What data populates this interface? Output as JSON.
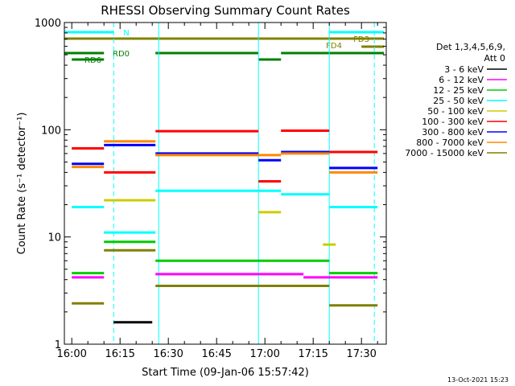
{
  "chart_data": {
    "type": "line",
    "title": "RHESSI Observing Summary Count Rates",
    "xlabel": "Start Time (09-Jan-06 15:57:42)",
    "ylabel": "Count Rate (s⁻¹ detector⁻¹)",
    "y_scale": "log",
    "ylim": [
      1,
      1000
    ],
    "xlim_minutes_after_start": [
      0,
      100
    ],
    "x_tick_labels": [
      "16:00",
      "16:15",
      "16:30",
      "16:45",
      "17:00",
      "17:15",
      "17:30"
    ],
    "x_tick_times": [
      "16:00",
      "16:15",
      "16:30",
      "16:45",
      "17:00",
      "17:15",
      "17:30"
    ],
    "y_tick_labels": [
      "1",
      "10",
      "100",
      "1000"
    ],
    "y_tick_values": [
      1,
      10,
      100,
      1000
    ],
    "legend_header": [
      "Det 1,3,4,5,6,9,",
      "Att 0"
    ],
    "legend_position": "right",
    "series": [
      {
        "name": "3 - 6 keV",
        "color": "#000000",
        "segments": [
          {
            "t0": "16:13",
            "t1": "16:25",
            "y": 1.6
          }
        ]
      },
      {
        "name": "6 - 12 keV",
        "color": "#ff00ff",
        "segments": [
          {
            "t0": "16:00",
            "t1": "16:10",
            "y": 4.2
          },
          {
            "t0": "16:26",
            "t1": "17:12",
            "y": 4.5
          },
          {
            "t0": "17:12",
            "t1": "17:35",
            "y": 4.2
          }
        ]
      },
      {
        "name": "12 - 25 keV",
        "color": "#00cc00",
        "segments": [
          {
            "t0": "16:00",
            "t1": "16:10",
            "y": 4.6
          },
          {
            "t0": "16:10",
            "t1": "16:26",
            "y": 9
          },
          {
            "t0": "16:26",
            "t1": "17:20",
            "y": 6
          },
          {
            "t0": "17:20",
            "t1": "17:35",
            "y": 4.6
          }
        ]
      },
      {
        "name": "25 - 50 keV",
        "color": "#00ffff",
        "segments": [
          {
            "t0": "16:00",
            "t1": "16:10",
            "y": 19
          },
          {
            "t0": "16:10",
            "t1": "16:26",
            "y": 11
          },
          {
            "t0": "16:26",
            "t1": "17:05",
            "y": 27
          },
          {
            "t0": "17:05",
            "t1": "17:20",
            "y": 25
          },
          {
            "t0": "17:20",
            "t1": "17:35",
            "y": 19
          }
        ]
      },
      {
        "name": "50 - 100 keV",
        "color": "#cccc00",
        "segments": [
          {
            "t0": "16:10",
            "t1": "16:26",
            "y": 22
          },
          {
            "t0": "16:58",
            "t1": "17:05",
            "y": 17
          },
          {
            "t0": "17:18",
            "t1": "17:22",
            "y": 8.5
          }
        ]
      },
      {
        "name": "100 - 300 keV",
        "color": "#ff0000",
        "segments": [
          {
            "t0": "16:00",
            "t1": "16:10",
            "y": 67
          },
          {
            "t0": "16:10",
            "t1": "16:26",
            "y": 40
          },
          {
            "t0": "16:26",
            "t1": "16:58",
            "y": 97
          },
          {
            "t0": "16:58",
            "t1": "17:05",
            "y": 33
          },
          {
            "t0": "17:05",
            "t1": "17:20",
            "y": 98
          },
          {
            "t0": "17:20",
            "t1": "17:35",
            "y": 62
          }
        ]
      },
      {
        "name": "300 - 800 keV",
        "color": "#0000ff",
        "segments": [
          {
            "t0": "16:00",
            "t1": "16:10",
            "y": 48
          },
          {
            "t0": "16:10",
            "t1": "16:26",
            "y": 72
          },
          {
            "t0": "16:26",
            "t1": "16:58",
            "y": 60
          },
          {
            "t0": "16:58",
            "t1": "17:05",
            "y": 52
          },
          {
            "t0": "17:05",
            "t1": "17:20",
            "y": 62
          },
          {
            "t0": "17:20",
            "t1": "17:35",
            "y": 44
          }
        ]
      },
      {
        "name": "800 - 7000 keV",
        "color": "#ff8800",
        "segments": [
          {
            "t0": "16:00",
            "t1": "16:10",
            "y": 45
          },
          {
            "t0": "16:10",
            "t1": "16:26",
            "y": 78
          },
          {
            "t0": "16:26",
            "t1": "16:58",
            "y": 58
          },
          {
            "t0": "16:58",
            "t1": "17:05",
            "y": 58
          },
          {
            "t0": "17:05",
            "t1": "17:20",
            "y": 60
          },
          {
            "t0": "17:20",
            "t1": "17:35",
            "y": 40
          }
        ]
      },
      {
        "name": "7000 - 15000 keV",
        "color": "#808000",
        "segments": [
          {
            "t0": "16:00",
            "t1": "16:10",
            "y": 2.4
          },
          {
            "t0": "16:10",
            "t1": "16:26",
            "y": 7.5
          },
          {
            "t0": "16:26",
            "t1": "17:20",
            "y": 3.5
          },
          {
            "t0": "17:20",
            "t1": "17:35",
            "y": 2.3
          }
        ]
      }
    ],
    "flag_bars": [
      {
        "label": "N",
        "color": "#00ffff",
        "segments": [
          {
            "t0": "15:57:42",
            "t1": "16:13"
          },
          {
            "t0": "17:20",
            "t1": "17:37"
          }
        ]
      },
      {
        "label": "FD3",
        "color": "#808000",
        "segments": [
          {
            "t0": "15:57:42",
            "t1": "17:37"
          }
        ]
      },
      {
        "label": "FD4",
        "color": "#808000",
        "segments": [
          {
            "t0": "17:30",
            "t1": "17:37"
          }
        ]
      },
      {
        "label": "RD0",
        "color": "#008000",
        "segments": [
          {
            "t0": "15:57:42",
            "t1": "16:10"
          },
          {
            "t0": "16:26",
            "t1": "16:58"
          },
          {
            "t0": "17:05",
            "t1": "17:37"
          }
        ]
      },
      {
        "label": "RD6",
        "color": "#008000",
        "segments": [
          {
            "t0": "16:00",
            "t1": "16:10"
          },
          {
            "t0": "16:58",
            "t1": "17:05"
          }
        ]
      }
    ],
    "vertical_markers": [
      {
        "time": "15:57:42",
        "color": "#00ffff",
        "style": "solid"
      },
      {
        "time": "16:13",
        "color": "#00ffff",
        "style": "dashed"
      },
      {
        "time": "16:27",
        "color": "#00ffff",
        "style": "solid"
      },
      {
        "time": "16:58",
        "color": "#00ffff",
        "style": "solid"
      },
      {
        "time": "17:20",
        "color": "#00ffff",
        "style": "solid"
      },
      {
        "time": "17:34",
        "color": "#00ffff",
        "style": "dashed"
      }
    ],
    "footer_date": "13-Oct-2021 15:23"
  }
}
